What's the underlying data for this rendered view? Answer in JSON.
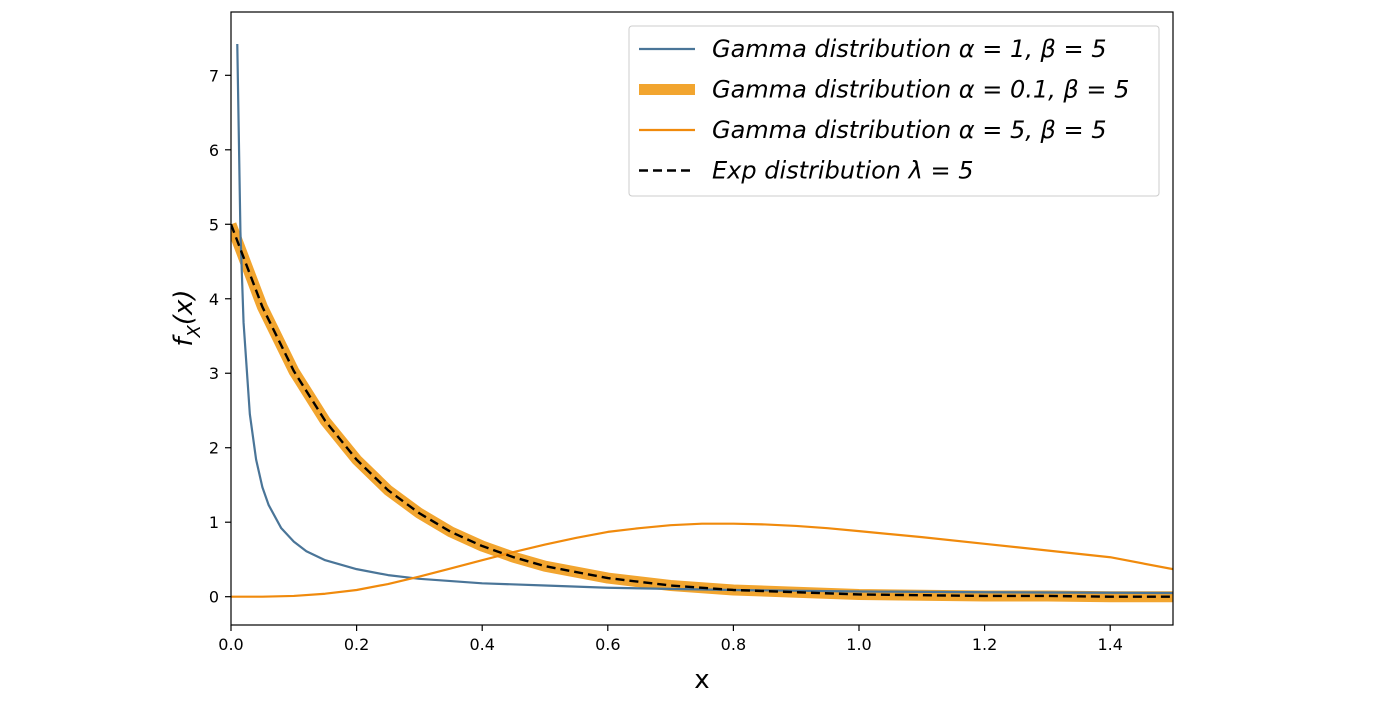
{
  "chart_data": {
    "type": "line",
    "xlabel": "x",
    "ylabel": "f_X(x)",
    "xlim": [
      0,
      1.5
    ],
    "ylim": [
      -0.38,
      7.85
    ],
    "xticks": [
      0,
      0.2,
      0.4,
      0.6,
      0.8,
      1.0,
      1.2,
      1.4
    ],
    "xtick_labels": [
      "0.0",
      "0.2",
      "0.4",
      "0.6",
      "0.8",
      "1.0",
      "1.2",
      "1.4"
    ],
    "yticks": [
      0,
      1,
      2,
      3,
      4,
      5,
      6,
      7
    ],
    "ytick_labels": [
      "0",
      "1",
      "2",
      "3",
      "4",
      "5",
      "6",
      "7"
    ],
    "grid": false,
    "legend_position": "top-right",
    "series": [
      {
        "name": "Gamma distribution α = 1, β = 5",
        "color": "#4a7598",
        "style": "solid",
        "x": [
          0.01,
          0.015,
          0.02,
          0.03,
          0.04,
          0.05,
          0.06,
          0.08,
          0.1,
          0.12,
          0.15,
          0.2,
          0.25,
          0.3,
          0.4,
          0.5,
          0.6,
          0.8,
          1.0,
          1.2,
          1.5
        ],
        "y": [
          7.42,
          4.9,
          3.68,
          2.45,
          1.84,
          1.47,
          1.23,
          0.92,
          0.74,
          0.61,
          0.49,
          0.37,
          0.29,
          0.24,
          0.18,
          0.15,
          0.12,
          0.09,
          0.07,
          0.06,
          0.05
        ]
      },
      {
        "name": "Gamma distribution α = 0.1, β = 5",
        "color": "#f2a52f",
        "style": "thick",
        "x": [
          0,
          0.05,
          0.1,
          0.15,
          0.2,
          0.25,
          0.3,
          0.35,
          0.4,
          0.45,
          0.5,
          0.6,
          0.7,
          0.8,
          0.9,
          1.0,
          1.1,
          1.2,
          1.3,
          1.4,
          1.5
        ],
        "y": [
          5.0,
          3.89,
          3.03,
          2.36,
          1.84,
          1.43,
          1.12,
          0.87,
          0.68,
          0.53,
          0.41,
          0.25,
          0.15,
          0.09,
          0.06,
          0.03,
          0.02,
          0.01,
          0.01,
          0.0,
          0.0
        ]
      },
      {
        "name": "Gamma distribution α = 5, β = 5",
        "color": "#f08a0c",
        "style": "solid",
        "x": [
          0,
          0.05,
          0.1,
          0.15,
          0.2,
          0.25,
          0.3,
          0.35,
          0.4,
          0.45,
          0.5,
          0.55,
          0.6,
          0.65,
          0.7,
          0.75,
          0.8,
          0.85,
          0.9,
          0.95,
          1.0,
          1.1,
          1.2,
          1.3,
          1.4,
          1.5
        ],
        "y": [
          0,
          0.0,
          0.01,
          0.04,
          0.09,
          0.17,
          0.27,
          0.38,
          0.49,
          0.6,
          0.7,
          0.79,
          0.87,
          0.92,
          0.96,
          0.98,
          0.98,
          0.97,
          0.95,
          0.92,
          0.88,
          0.8,
          0.71,
          0.62,
          0.53,
          0.37
        ]
      },
      {
        "name": "Exp distribution λ = 5",
        "color": "#000000",
        "style": "dashed",
        "x": [
          0,
          0.05,
          0.1,
          0.15,
          0.2,
          0.25,
          0.3,
          0.35,
          0.4,
          0.45,
          0.5,
          0.6,
          0.7,
          0.8,
          0.9,
          1.0,
          1.1,
          1.2,
          1.3,
          1.4,
          1.5
        ],
        "y": [
          5.0,
          3.89,
          3.03,
          2.36,
          1.84,
          1.43,
          1.12,
          0.87,
          0.68,
          0.53,
          0.41,
          0.25,
          0.15,
          0.09,
          0.06,
          0.03,
          0.02,
          0.01,
          0.01,
          0.0,
          0.0
        ]
      }
    ]
  }
}
